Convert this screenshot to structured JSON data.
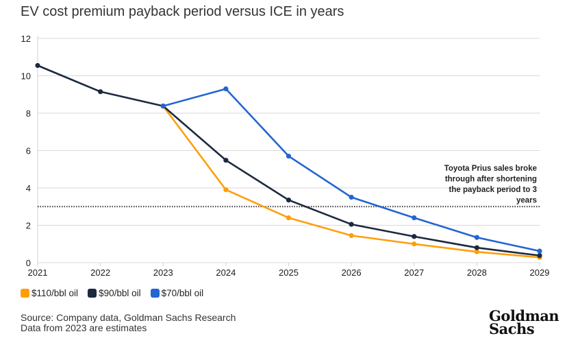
{
  "subtitle": "EV cost premium payback period versus ICE in years",
  "chart_data": {
    "type": "line",
    "title": "",
    "subtitle": "EV cost premium payback period versus ICE in years",
    "xlabel": "",
    "ylabel": "",
    "x": [
      "2021",
      "2022",
      "2023",
      "2024",
      "2025",
      "2026",
      "2027",
      "2028",
      "2029"
    ],
    "ylim": [
      0,
      12
    ],
    "yticks": [
      "0",
      "2",
      "4",
      "6",
      "8",
      "10",
      "12"
    ],
    "grid": true,
    "legend_position": "bottom-left",
    "series": [
      {
        "name": "$110/bbl oil",
        "color": "#FF9E0B",
        "values": [
          null,
          null,
          8.38,
          3.9,
          2.4,
          1.45,
          1.0,
          0.58,
          0.28
        ]
      },
      {
        "name": "$90/bbl oil",
        "color": "#1B2A3F",
        "values": [
          10.55,
          9.15,
          8.38,
          5.48,
          3.35,
          2.05,
          1.4,
          0.8,
          0.38
        ]
      },
      {
        "name": "$70/bbl oil",
        "color": "#2365D1",
        "values": [
          null,
          null,
          8.38,
          9.3,
          5.7,
          3.5,
          2.4,
          1.35,
          0.62
        ]
      }
    ],
    "reference_line": {
      "y": 3,
      "style": "dotted"
    },
    "annotation": {
      "lines": [
        "Toyota Prius sales broke",
        "through after shortening",
        "the payback period to 3",
        "years"
      ]
    }
  },
  "legend": [
    {
      "label": "$110/bbl oil",
      "color": "#FF9E0B"
    },
    {
      "label": "$90/bbl oil",
      "color": "#1B2A3F"
    },
    {
      "label": "$70/bbl oil",
      "color": "#2365D1"
    }
  ],
  "source_line1": "Source: Company data, Goldman Sachs Research",
  "source_line2": "Data from 2023 are estimates",
  "logo": {
    "line1": "Goldman",
    "line2": "Sachs"
  }
}
